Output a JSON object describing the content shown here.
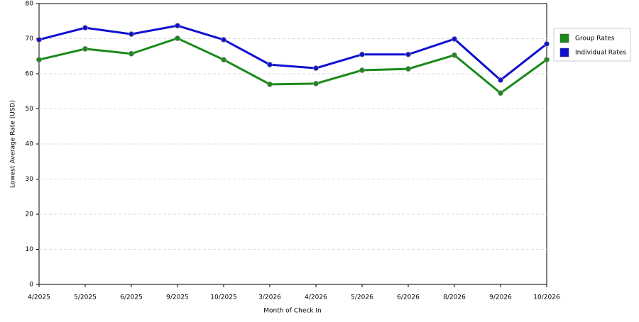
{
  "chart_data": {
    "type": "line",
    "x_label": "Month of Check In",
    "y_label": "Lowest Average Rate (USD)",
    "categories": [
      "4/2025",
      "5/2025",
      "6/2025",
      "9/2025",
      "10/2025",
      "3/2026",
      "4/2026",
      "5/2026",
      "6/2026",
      "8/2026",
      "9/2026",
      "10/2026"
    ],
    "series": [
      {
        "name": "Group Rates",
        "color": "#1a8a1a",
        "values": [
          64.0,
          67.1,
          65.7,
          70.1,
          64.0,
          57.0,
          57.2,
          61.0,
          61.4,
          65.3,
          54.5,
          64.0
        ]
      },
      {
        "name": "Individual Rates",
        "color": "#1010d0",
        "values": [
          69.7,
          73.1,
          71.3,
          73.7,
          69.7,
          62.6,
          61.6,
          65.5,
          65.5,
          69.9,
          58.2,
          68.5
        ]
      }
    ],
    "ylim": [
      0,
      80
    ],
    "yticks": [
      0,
      10,
      20,
      30,
      40,
      50,
      60,
      70,
      80
    ],
    "grid": true,
    "legend": "right"
  }
}
